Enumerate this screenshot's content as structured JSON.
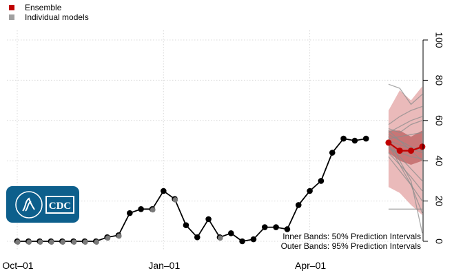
{
  "chart_data": {
    "type": "line",
    "title": "",
    "xlabel": "",
    "ylabel": "",
    "ylim": [
      0,
      100
    ],
    "y_ticks": [
      "0",
      "20",
      "40",
      "60",
      "80",
      "100"
    ],
    "x_ticks": [
      "Oct–01",
      "Jan–01",
      "Apr–01"
    ],
    "grid": true,
    "legend_position": "top-left",
    "legend": [
      {
        "label": "Ensemble",
        "color": "#c00000"
      },
      {
        "label": "Individual models",
        "color": "#a0a0a0"
      }
    ],
    "annotations": {
      "inner": "Inner Bands: 50% Prediction Intervals",
      "outer": "Outer Bands: 95% Prediction Intervals"
    },
    "logo": {
      "text": "CDC",
      "color": "#0d5f8c"
    },
    "observed": {
      "name": "",
      "start_week": 0,
      "values": [
        0,
        0,
        0,
        0,
        0,
        0,
        0,
        0,
        2,
        3,
        14,
        16,
        16,
        25,
        21,
        8,
        2,
        11,
        2,
        4,
        0,
        1,
        7,
        7,
        6,
        18,
        25,
        30,
        44,
        51,
        50,
        51
      ],
      "gray_points": [
        0,
        1,
        2,
        3,
        4,
        5,
        6,
        7,
        8,
        9,
        12,
        14,
        18
      ]
    },
    "ensemble": {
      "weeks": [
        33,
        34,
        35,
        36
      ],
      "median": [
        49,
        45,
        45,
        47
      ],
      "pi50_low": [
        44,
        40,
        38,
        40
      ],
      "pi50_high": [
        55,
        55,
        52,
        55
      ],
      "pi95_low": [
        27,
        24,
        18,
        13
      ],
      "pi95_high": [
        65,
        75,
        70,
        77
      ]
    },
    "individual_models": [
      {
        "weeks": [
          33,
          34,
          35,
          36
        ],
        "values": [
          78,
          76,
          68,
          73
        ]
      },
      {
        "weeks": [
          33,
          34,
          35,
          36
        ],
        "values": [
          16,
          16,
          16,
          16
        ]
      },
      {
        "weeks": [
          33,
          34,
          35,
          36
        ],
        "values": [
          52,
          40,
          30,
          4
        ]
      },
      {
        "weeks": [
          33,
          34,
          35,
          36
        ],
        "values": [
          48,
          38,
          28,
          14
        ]
      },
      {
        "weeks": [
          33,
          34,
          35,
          36
        ],
        "values": [
          58,
          62,
          65,
          67
        ]
      },
      {
        "weeks": [
          33,
          34,
          35,
          36
        ],
        "values": [
          54,
          57,
          60,
          62
        ]
      },
      {
        "weeks": [
          33,
          34,
          35,
          36
        ],
        "values": [
          50,
          48,
          46,
          44
        ]
      },
      {
        "weeks": [
          33,
          34,
          35,
          36
        ],
        "values": [
          46,
          44,
          42,
          41
        ]
      },
      {
        "weeks": [
          33,
          34,
          35,
          36
        ],
        "values": [
          53,
          50,
          47,
          45
        ]
      },
      {
        "weeks": [
          33,
          34,
          35,
          36
        ],
        "values": [
          44,
          38,
          32,
          25
        ]
      },
      {
        "weeks": [
          33,
          34,
          35,
          36
        ],
        "values": [
          55,
          50,
          45,
          40
        ]
      },
      {
        "weeks": [
          33,
          34,
          35,
          36
        ],
        "values": [
          51,
          52,
          53,
          54
        ]
      },
      {
        "weeks": [
          33,
          34,
          35,
          36
        ],
        "values": [
          47,
          42,
          36,
          30
        ]
      },
      {
        "weeks": [
          33,
          34,
          35,
          36
        ],
        "values": [
          42,
          35,
          28,
          20
        ]
      },
      {
        "weeks": [
          33,
          34,
          35,
          36
        ],
        "values": [
          56,
          54,
          58,
          60
        ]
      }
    ]
  }
}
